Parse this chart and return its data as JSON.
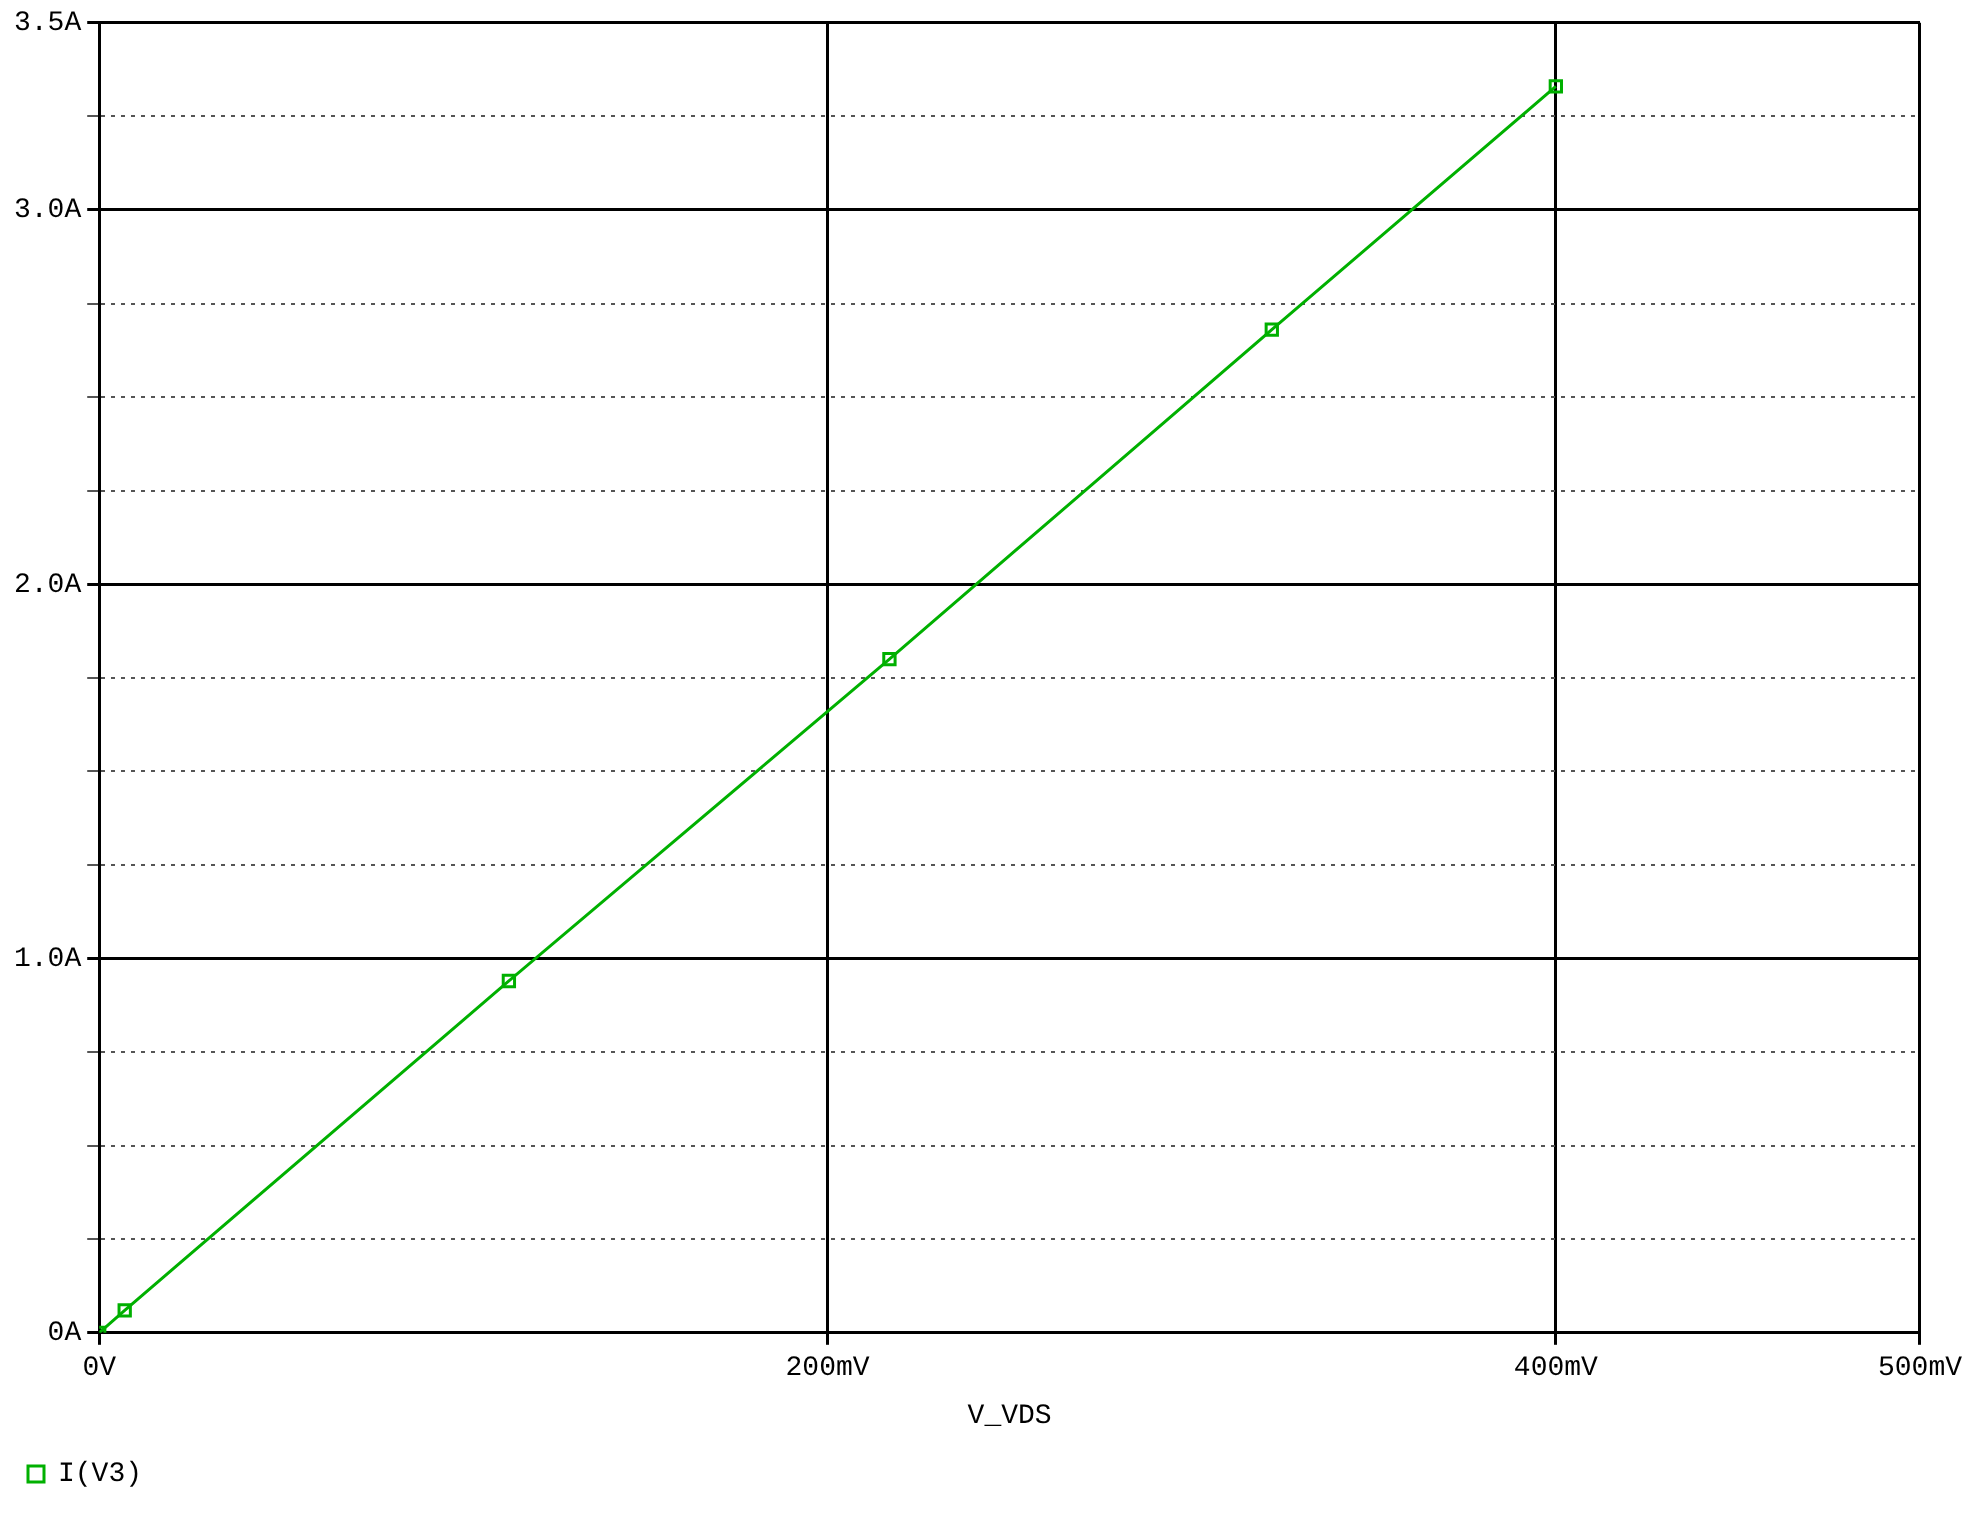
{
  "chart_data": {
    "type": "line",
    "xlabel": "V_VDS",
    "x": [
      0,
      7,
      112.5,
      217,
      322,
      400
    ],
    "series": [
      {
        "name": "I(V3)",
        "color": "#00b000",
        "values": [
          0,
          0.06,
          0.94,
          1.8,
          2.68,
          3.33
        ]
      }
    ],
    "xlim": [
      0,
      500
    ],
    "xticks": [
      {
        "value": 0,
        "label": "0V"
      },
      {
        "value": 200,
        "label": "200mV"
      },
      {
        "value": 400,
        "label": "400mV"
      },
      {
        "value": 500,
        "label": "500mV"
      }
    ],
    "ylim": [
      0,
      3.5
    ],
    "yticks": [
      {
        "value": 0,
        "label": "0A"
      },
      {
        "value": 0.25,
        "label": null
      },
      {
        "value": 0.5,
        "label": null
      },
      {
        "value": 0.75,
        "label": null
      },
      {
        "value": 1,
        "label": "1.0A"
      },
      {
        "value": 1.25,
        "label": null
      },
      {
        "value": 1.5,
        "label": null
      },
      {
        "value": 1.75,
        "label": null
      },
      {
        "value": 2,
        "label": "2.0A"
      },
      {
        "value": 2.25,
        "label": null
      },
      {
        "value": 2.5,
        "label": null
      },
      {
        "value": 2.75,
        "label": null
      },
      {
        "value": 3,
        "label": "3.0A"
      },
      {
        "value": 3.25,
        "label": null
      },
      {
        "value": 3.5,
        "label": "3.5A"
      }
    ],
    "grid": true,
    "legend": "bottom left",
    "marker": "square",
    "line_style": "solid"
  }
}
